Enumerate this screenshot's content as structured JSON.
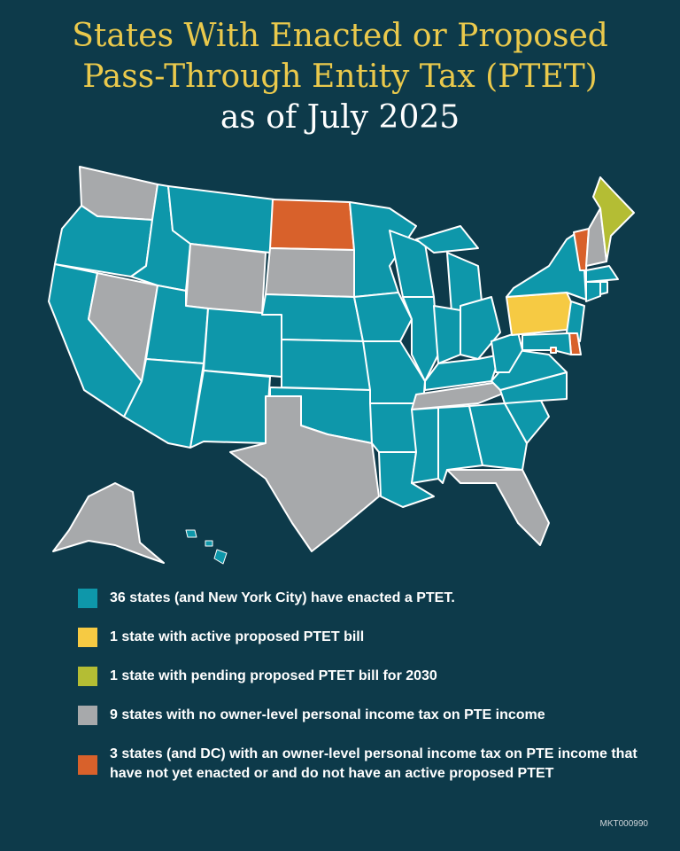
{
  "title": {
    "line1": "States With Enacted or Proposed",
    "line2": "Pass-Through Entity Tax (PTET)",
    "line3": "as of July 2025"
  },
  "colors": {
    "background": "#0d3a4a",
    "title": "#eac94c",
    "enacted": "#0e97aa",
    "active_proposed": "#f6ca43",
    "pending_2030": "#b4bd34",
    "no_tax": "#a7a9ab",
    "not_enacted": "#d8612b"
  },
  "legend": [
    {
      "label": "36 states (and New York City) have enacted a PTET.",
      "status": "enacted"
    },
    {
      "label": "1 state with active proposed PTET bill",
      "status": "active_proposed"
    },
    {
      "label": "1 state with pending proposed PTET bill for 2030",
      "status": "pending_2030"
    },
    {
      "label": "9 states with no owner-level personal income tax on PTE income",
      "status": "no_tax"
    },
    {
      "label": "3 states (and DC) with an owner-level personal income tax on PTE income that have not yet enacted or and do not have an active proposed PTET",
      "status": "not_enacted"
    }
  ],
  "map_data": {
    "active_proposed": [
      "PA"
    ],
    "pending_2030": [
      "ME"
    ],
    "no_tax": [
      "WA",
      "NV",
      "WY",
      "SD",
      "TX",
      "TN",
      "FL",
      "AK",
      "NH"
    ],
    "not_enacted": [
      "ND",
      "VT",
      "DE",
      "DC"
    ],
    "enacted": [
      "OR",
      "CA",
      "ID",
      "MT",
      "UT",
      "AZ",
      "CO",
      "NM",
      "NE",
      "KS",
      "OK",
      "MN",
      "IA",
      "MO",
      "AR",
      "LA",
      "WI",
      "IL",
      "MI",
      "IN",
      "OH",
      "KY",
      "MS",
      "AL",
      "GA",
      "SC",
      "NC",
      "VA",
      "WV",
      "NY",
      "MA",
      "CT",
      "RI",
      "NJ",
      "MD",
      "HI"
    ]
  },
  "footer_code": "MKT000990"
}
